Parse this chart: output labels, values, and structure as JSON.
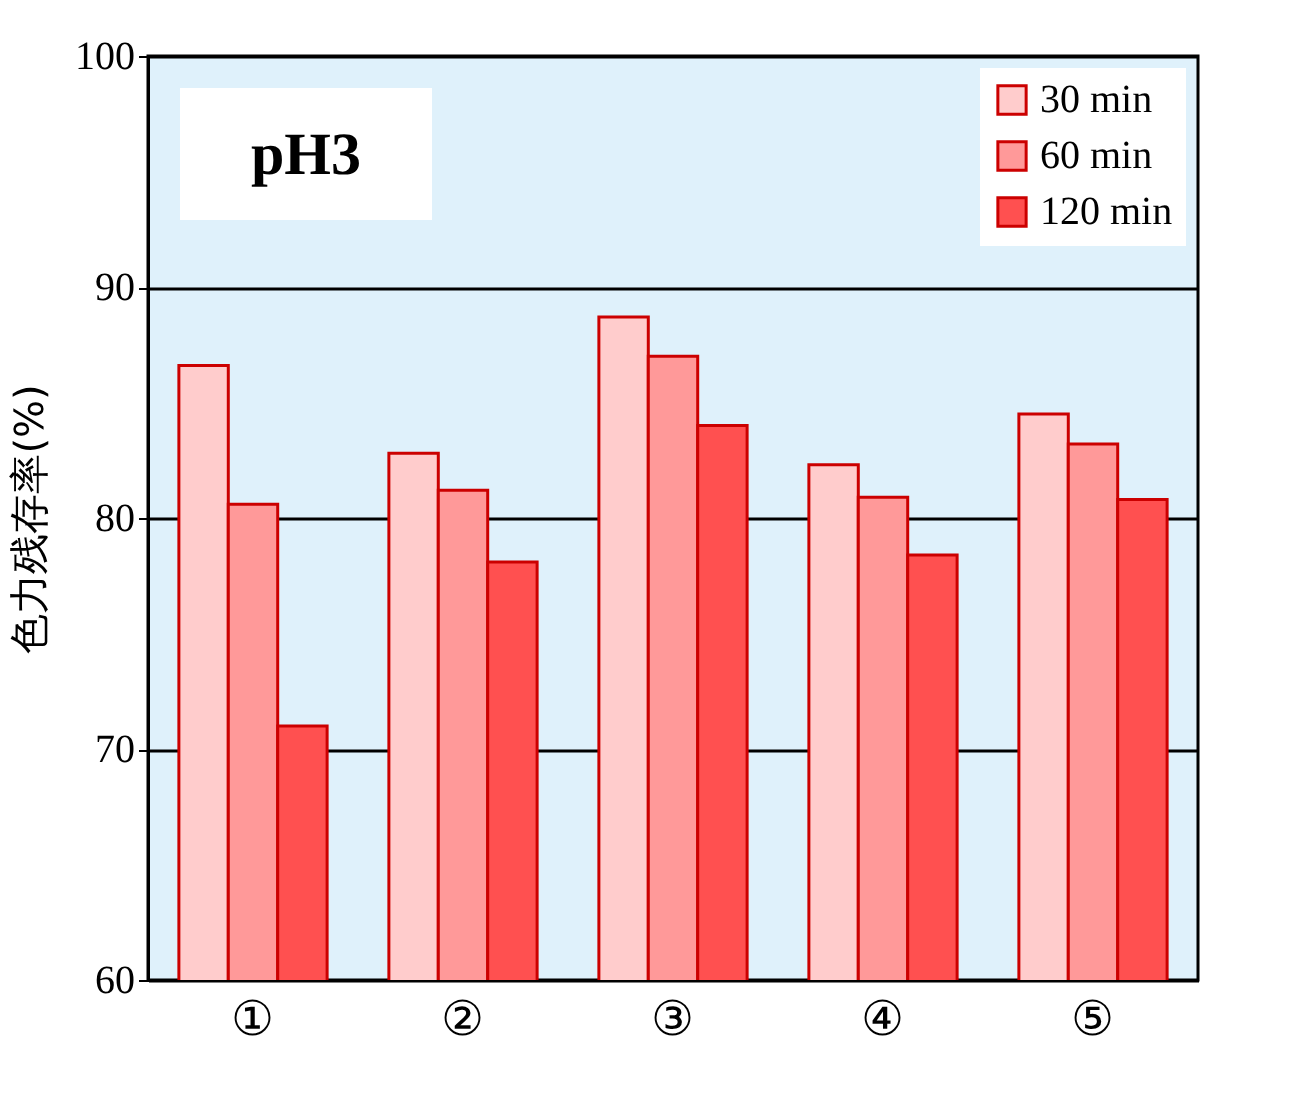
{
  "chart_data": {
    "type": "bar",
    "title": "pH3",
    "ylabel": "色力残存率(%)",
    "categories": [
      "①",
      "②",
      "③",
      "④",
      "⑤"
    ],
    "series": [
      {
        "name": "30 min",
        "color": "#ffcccc",
        "values": [
          86.6,
          82.8,
          88.7,
          82.3,
          84.5
        ]
      },
      {
        "name": "60 min",
        "color": "#ff9999",
        "values": [
          80.6,
          81.2,
          87.0,
          80.9,
          83.2
        ]
      },
      {
        "name": "120 min",
        "color": "#ff5050",
        "values": [
          71.0,
          78.1,
          84.0,
          78.4,
          80.8
        ]
      }
    ],
    "ylim": [
      60,
      100
    ],
    "yticks": [
      60,
      70,
      80,
      90,
      100
    ],
    "grid": "y",
    "legend": "top right"
  }
}
